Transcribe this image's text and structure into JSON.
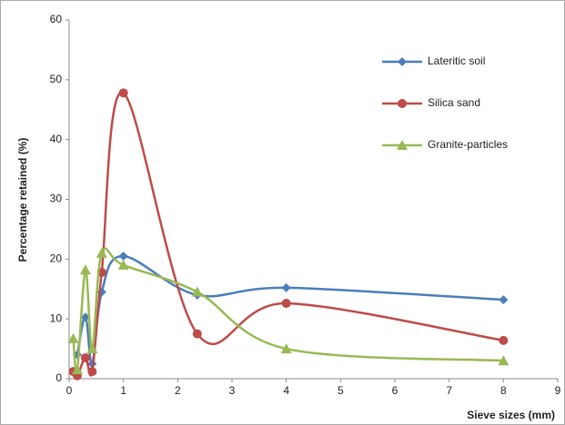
{
  "chart_data": {
    "type": "line",
    "smooth": true,
    "y_label": "Percentage retained (%)",
    "x_label": "Sieve sizes (mm)",
    "xlim": [
      0,
      9
    ],
    "xticks": [
      0,
      1,
      2,
      3,
      4,
      5,
      6,
      7,
      8,
      9
    ],
    "ylim": [
      0,
      60
    ],
    "yticks": [
      0,
      10,
      20,
      30,
      40,
      50,
      60
    ],
    "grid": false,
    "legend": "upper right",
    "series": [
      {
        "name": "Lateritic soil",
        "color": "#4a7ebb",
        "marker": "diamond",
        "x": [
          0.15,
          0.3,
          0.425,
          0.6,
          1.0,
          2.36,
          4,
          8
        ],
        "values": [
          4,
          10.3,
          2.5,
          14.5,
          20.5,
          14,
          15.2,
          13.2
        ]
      },
      {
        "name": "Silica sand",
        "color": "#be4b48",
        "marker": "circle",
        "x": [
          0.075,
          0.15,
          0.3,
          0.425,
          0.6,
          1.0,
          2.36,
          4,
          8
        ],
        "values": [
          1.2,
          0.5,
          3.5,
          1.2,
          17.8,
          47.8,
          7.5,
          12.6,
          6.4
        ]
      },
      {
        "name": "Granite-particles",
        "color": "#98b954",
        "marker": "triangle",
        "x": [
          0.075,
          0.15,
          0.3,
          0.425,
          0.6,
          1.0,
          2.36,
          4,
          8
        ],
        "values": [
          6.7,
          1.5,
          18.2,
          5,
          21,
          19,
          14.5,
          5,
          3
        ]
      }
    ]
  }
}
